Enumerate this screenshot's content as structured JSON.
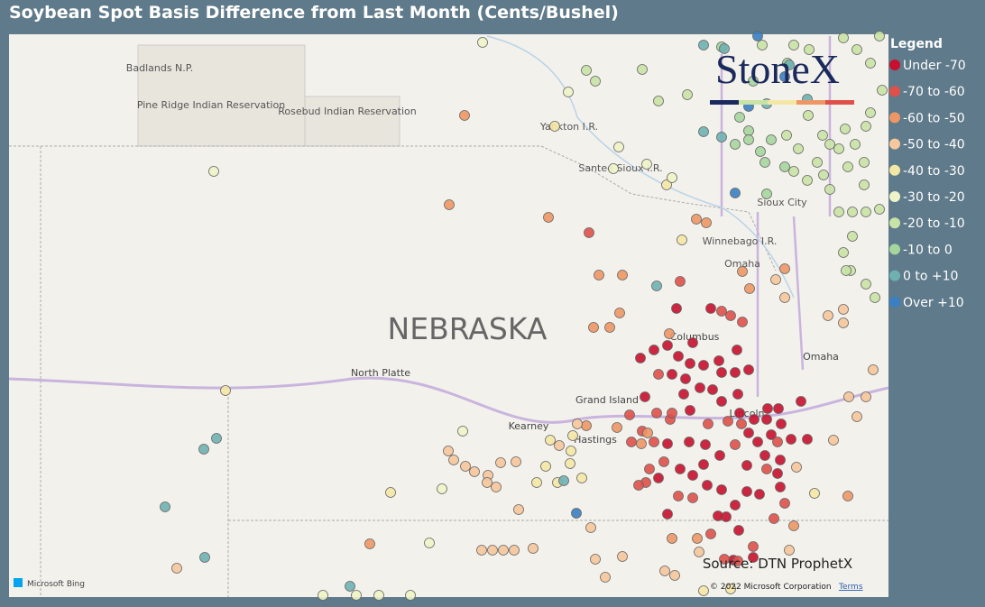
{
  "title": "Soybean Spot Basis Difference from Last Month (Cents/Bushel)",
  "logo": "StoneX",
  "legend": {
    "title": "Legend",
    "items": [
      {
        "label": "Under -70",
        "color": "#c8102e"
      },
      {
        "label": "-70 to -60",
        "color": "#e0504a"
      },
      {
        "label": "-60 to -50",
        "color": "#ee9766"
      },
      {
        "label": "-50 to -40",
        "color": "#f6c79c"
      },
      {
        "label": "-40 to -30",
        "color": "#f4e7a6"
      },
      {
        "label": "-30 to -20",
        "color": "#eef4c8"
      },
      {
        "label": "-20 to -10",
        "color": "#c9e3a6"
      },
      {
        "label": "-10 to 0",
        "color": "#a6d59e"
      },
      {
        "label": "0 to +10",
        "color": "#6fb1b1"
      },
      {
        "label": "Over +10",
        "color": "#3a7fc1"
      }
    ]
  },
  "map_labels": {
    "badlands": "Badlands N.P.",
    "pine_ridge": "Pine Ridge Indian Reservation",
    "rosebud": "Rosebud Indian Reservation",
    "yankton": "Yankton I.R.",
    "santee": "Santee Sioux I.R.",
    "sioux_city": "Sioux City",
    "winnebago": "Winnebago I.R.",
    "omaha_ir": "Omaha",
    "state": "NEBRASKA",
    "columbus": "Columbus",
    "north_platte": "North Platte",
    "grand_island": "Grand Island",
    "kearney": "Kearney",
    "hastings": "Hastings",
    "lincoln": "Lincoln",
    "omaha": "Omaha"
  },
  "source": "Source: DTN ProphetX",
  "bing": "Microsoft Bing",
  "copyright": "© 2022 Microsoft Corporation",
  "terms": "Terms"
}
